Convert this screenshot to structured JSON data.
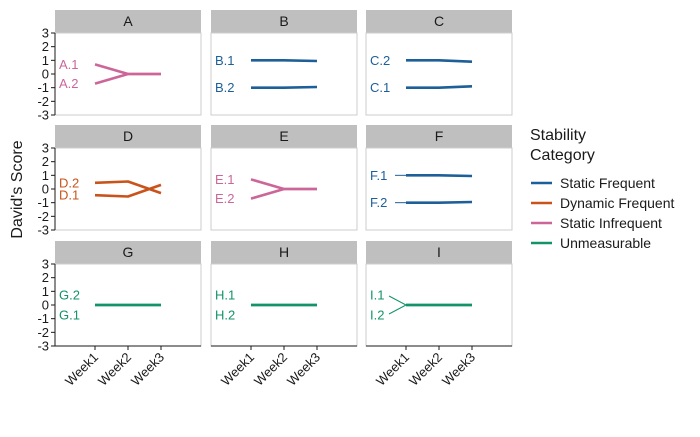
{
  "chart_data": {
    "type": "line",
    "layout": "faceted 3x3 small multiples",
    "ylabel": "David's Score",
    "xlabel": "",
    "x_categories": [
      "Week1",
      "Week2",
      "Week3"
    ],
    "ylim": [
      -3,
      3
    ],
    "y_ticks": [
      "3",
      "2",
      "1",
      "0",
      "-1",
      "-2",
      "-3"
    ],
    "legend": {
      "title": "Stability\nCategory",
      "placement": "right",
      "items": [
        {
          "key": "static_frequent",
          "label": "Static Frequent",
          "color": "#1d5f99"
        },
        {
          "key": "dynamic_frequent",
          "label": "Dynamic Frequent",
          "color": "#c9531a"
        },
        {
          "key": "static_infrequent",
          "label": "Static Infrequent",
          "color": "#cc6699"
        },
        {
          "key": "unmeasurable",
          "label": "Unmeasurable",
          "color": "#13936a"
        }
      ]
    },
    "panels": [
      {
        "title": "A",
        "category": "static_infrequent",
        "series": [
          {
            "name": "A.1",
            "values": [
              0.7,
              0.0,
              0.0
            ]
          },
          {
            "name": "A.2",
            "values": [
              -0.7,
              0.0,
              0.0
            ]
          }
        ]
      },
      {
        "title": "B",
        "category": "static_frequent",
        "series": [
          {
            "name": "B.1",
            "values": [
              1.0,
              1.0,
              0.95
            ]
          },
          {
            "name": "B.2",
            "values": [
              -1.0,
              -1.0,
              -0.95
            ]
          }
        ]
      },
      {
        "title": "C",
        "category": "static_frequent",
        "series": [
          {
            "name": "C.2",
            "values": [
              1.0,
              1.0,
              0.9
            ]
          },
          {
            "name": "C.1",
            "values": [
              -1.0,
              -1.0,
              -0.9
            ]
          }
        ]
      },
      {
        "title": "D",
        "category": "dynamic_frequent",
        "series": [
          {
            "name": "D.2",
            "values": [
              0.45,
              0.55,
              -0.3
            ]
          },
          {
            "name": "D.1",
            "values": [
              -0.45,
              -0.55,
              0.3
            ]
          }
        ]
      },
      {
        "title": "E",
        "category": "static_infrequent",
        "series": [
          {
            "name": "E.1",
            "values": [
              0.7,
              0.0,
              0.0
            ]
          },
          {
            "name": "E.2",
            "values": [
              -0.7,
              0.0,
              0.0
            ]
          }
        ]
      },
      {
        "title": "F",
        "category": "static_frequent",
        "series": [
          {
            "name": "F.1",
            "values": [
              1.0,
              1.0,
              0.95
            ]
          },
          {
            "name": "F.2",
            "values": [
              -1.0,
              -1.0,
              -0.95
            ]
          }
        ]
      },
      {
        "title": "G",
        "category": "unmeasurable",
        "series": [
          {
            "name": "G.2",
            "values": [
              0.0,
              0.0,
              0.0
            ]
          },
          {
            "name": "G.1",
            "values": [
              0.0,
              0.0,
              0.0
            ]
          }
        ]
      },
      {
        "title": "H",
        "category": "unmeasurable",
        "series": [
          {
            "name": "H.1",
            "values": [
              0.0,
              0.0,
              0.0
            ]
          },
          {
            "name": "H.2",
            "values": [
              0.0,
              0.0,
              0.0
            ]
          }
        ]
      },
      {
        "title": "I",
        "category": "unmeasurable",
        "series": [
          {
            "name": "I.1",
            "values": [
              0.0,
              0.0,
              0.0
            ]
          },
          {
            "name": "I.2",
            "values": [
              0.0,
              0.0,
              0.0
            ]
          }
        ]
      }
    ]
  }
}
